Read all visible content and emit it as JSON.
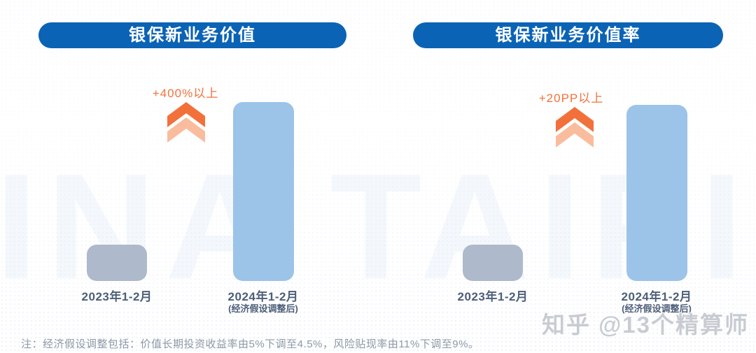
{
  "background": {
    "ghost_text": "CHINA TAIPING"
  },
  "colors": {
    "header-blue": "#0b63b5",
    "bar-blue": "#9cc3e8",
    "bar-gray": "#aeb9cb",
    "orange": "#f2713b",
    "orange-light": "#f9bd9d",
    "label": "#4d5e79",
    "note": "#8d99a6"
  },
  "footnote": "注：经济假设调整包括：价值长期投资收益率由5%下调至4.5%，风险贴现率由11%下调至9%。",
  "watermark": "知乎 @13个精算师",
  "chart_data": [
    {
      "type": "bar",
      "title": "银保新业务价值",
      "categories": [
        "2023年1-2月",
        "2024年1-2月"
      ],
      "category_sublabels": [
        "",
        "(经济假设调整后)"
      ],
      "values_relative": [
        1,
        4.92
      ],
      "annotation": "+400%以上",
      "bar_colors": [
        "#aeb9cb",
        "#9cc3e8"
      ],
      "axes": "none",
      "legend": "none",
      "grid": false
    },
    {
      "type": "bar",
      "title": "银保新业务价值率",
      "categories": [
        "2023年1-2月",
        "2024年1-2月"
      ],
      "category_sublabels": [
        "",
        "(经济假设调整后)"
      ],
      "values_relative": [
        1,
        4.85
      ],
      "annotation": "+20PP以上",
      "bar_colors": [
        "#aeb9cb",
        "#9cc3e8"
      ],
      "axes": "none",
      "legend": "none",
      "grid": false
    }
  ]
}
